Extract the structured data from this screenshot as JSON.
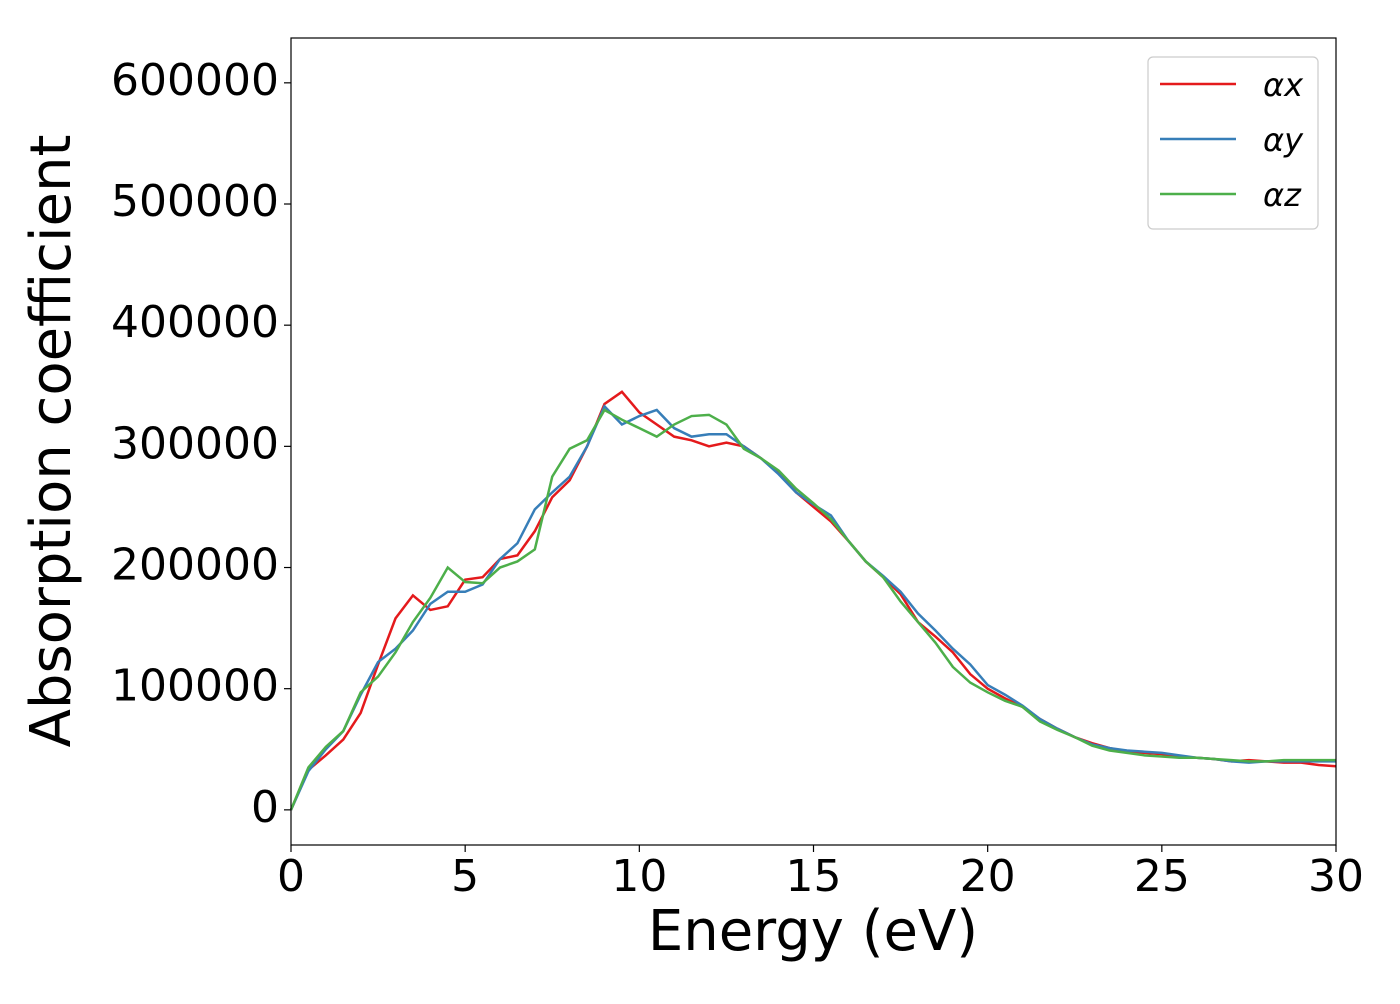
{
  "chart_data": {
    "type": "line",
    "xlabel": "Energy (eV)",
    "ylabel": "Absorption coefficient",
    "x": [
      0,
      0.5,
      1,
      1.5,
      2,
      2.5,
      3,
      3.5,
      4,
      4.5,
      5,
      5.5,
      6,
      6.5,
      7,
      7.5,
      8,
      8.5,
      9,
      9.5,
      10,
      10.5,
      11,
      11.5,
      12,
      12.5,
      13,
      13.5,
      14,
      14.5,
      15,
      15.5,
      16,
      16.5,
      17,
      17.5,
      18,
      18.5,
      19,
      19.5,
      20,
      20.5,
      21,
      21.5,
      22,
      22.5,
      23,
      23.5,
      24,
      24.5,
      25,
      25.5,
      26,
      26.5,
      27,
      27.5,
      28,
      28.5,
      29,
      29.5,
      30
    ],
    "series": [
      {
        "name": "αx",
        "color": "#e41a1c",
        "values": [
          0,
          33000,
          45000,
          58000,
          80000,
          120000,
          158000,
          177000,
          165000,
          168000,
          190000,
          192000,
          207000,
          210000,
          230000,
          258000,
          272000,
          300000,
          335000,
          345000,
          328000,
          318000,
          308000,
          305000,
          300000,
          303000,
          300000,
          290000,
          278000,
          262000,
          250000,
          238000,
          222000,
          205000,
          192000,
          178000,
          155000,
          143000,
          130000,
          112000,
          100000,
          92000,
          85000,
          75000,
          67000,
          60000,
          55000,
          51000,
          48000,
          47000,
          46000,
          44000,
          43000,
          42000,
          40000,
          41000,
          40000,
          39000,
          39000,
          37000,
          36000
        ]
      },
      {
        "name": "αy",
        "color": "#377eb8",
        "values": [
          0,
          32000,
          50000,
          65000,
          95000,
          122000,
          133000,
          148000,
          170000,
          180000,
          180000,
          186000,
          207000,
          220000,
          248000,
          262000,
          275000,
          300000,
          333000,
          318000,
          325000,
          330000,
          315000,
          308000,
          310000,
          310000,
          300000,
          290000,
          277000,
          262000,
          252000,
          243000,
          222000,
          205000,
          193000,
          180000,
          162000,
          148000,
          133000,
          120000,
          103000,
          95000,
          86000,
          75000,
          67000,
          60000,
          54000,
          51000,
          49000,
          48000,
          47000,
          45000,
          43000,
          42000,
          40000,
          39000,
          40000,
          40000,
          40000,
          40000,
          40000
        ]
      },
      {
        "name": "αz",
        "color": "#4daf4a",
        "values": [
          0,
          35000,
          52000,
          65000,
          97000,
          110000,
          130000,
          155000,
          175000,
          200000,
          188000,
          187000,
          200000,
          205000,
          215000,
          275000,
          298000,
          305000,
          330000,
          322000,
          315000,
          308000,
          318000,
          325000,
          326000,
          318000,
          298000,
          290000,
          280000,
          265000,
          253000,
          240000,
          222000,
          205000,
          192000,
          172000,
          155000,
          138000,
          118000,
          105000,
          97000,
          90000,
          85000,
          73000,
          66000,
          60000,
          53000,
          49000,
          47000,
          45000,
          44000,
          43000,
          43000,
          42000,
          41000,
          40000,
          40000,
          41000,
          41000,
          41000,
          41000
        ]
      }
    ],
    "xlim": [
      0,
      30
    ],
    "xticks": [
      0,
      5,
      10,
      15,
      20,
      25,
      30
    ],
    "ylim": [
      -29000,
      637000
    ],
    "yticks": [
      0,
      100000,
      200000,
      300000,
      400000,
      500000,
      600000
    ],
    "legend": "upper right"
  }
}
